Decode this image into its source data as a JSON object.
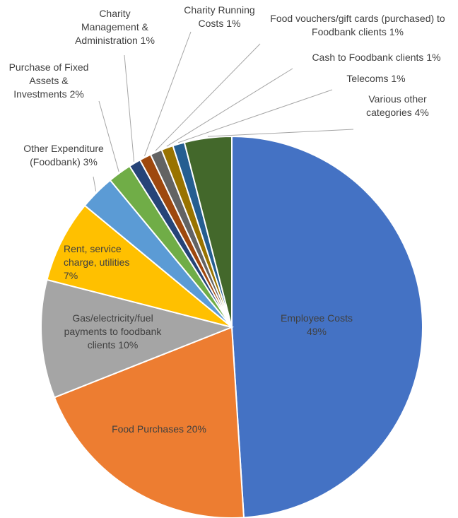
{
  "chart_data": {
    "type": "pie",
    "categories": [
      "Employee Costs",
      "Food Purchases",
      "Gas/electricity/fuel payments to foodbank clients",
      "Rent, service charge, utilities",
      "Other Expenditure (Foodbank)",
      "Purchase of Fixed Assets & Investments",
      "Charity Management & Administration",
      "Charity Running Costs",
      "Food vouchers/gift cards (purchased) to Foodbank clients",
      "Cash to Foodbank clients",
      "Telecoms",
      "Various other categories"
    ],
    "values": [
      49,
      20,
      10,
      7,
      3,
      2,
      1,
      1,
      1,
      1,
      1,
      4
    ],
    "value_labels": [
      "49%",
      "20%",
      "10%",
      "7%",
      "3%",
      "2%",
      "1%",
      "1%",
      "1%",
      "1%",
      "1%",
      "4%"
    ],
    "colors": [
      "#4472c4",
      "#ed7d31",
      "#a5a5a5",
      "#ffc000",
      "#5b9bd5",
      "#70ad47",
      "#264478",
      "#9e480e",
      "#636363",
      "#997300",
      "#255e91",
      "#43682b"
    ]
  }
}
